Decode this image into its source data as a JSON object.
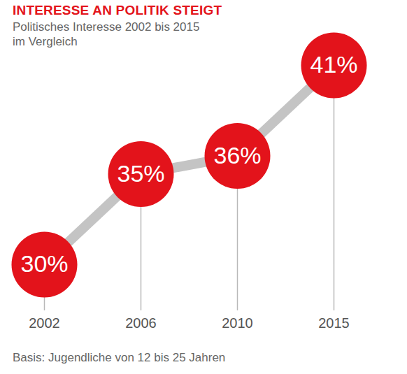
{
  "chart_data": {
    "type": "line",
    "title": "INTERESSE AN POLITIK STEIGT",
    "subtitle": "Politisches Interesse 2002 bis 2015\nim Vergleich",
    "caption": "Basis: Jugendliche von 12 bis 25 Jahren",
    "categories": [
      "2002",
      "2006",
      "2010",
      "2015"
    ],
    "values": [
      30,
      35,
      36,
      41
    ],
    "value_labels": [
      "30%",
      "35%",
      "36%",
      "41%"
    ],
    "data_labels": true,
    "color": "#e3131b",
    "marker": "circle",
    "tick_labels": "x"
  }
}
